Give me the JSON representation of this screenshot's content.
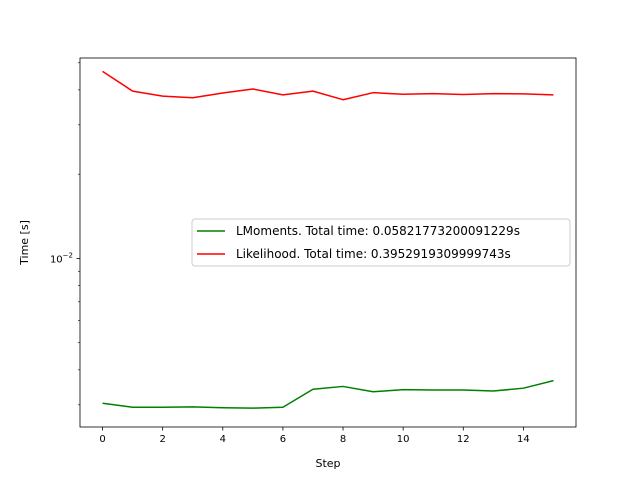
{
  "chart_data": {
    "type": "line",
    "xlabel": "Step",
    "ylabel": "Time [s]",
    "yscale": "log",
    "xlim": [
      -0.75,
      15.75
    ],
    "ylim": [
      0.0025,
      0.052
    ],
    "xticks": [
      0,
      2,
      4,
      6,
      8,
      10,
      12,
      14
    ],
    "yticks": [
      {
        "value": 0.01,
        "label": "10",
        "exp": "−2"
      }
    ],
    "grid": false,
    "legend_position": "center-right",
    "x": [
      0,
      1,
      2,
      3,
      4,
      5,
      6,
      7,
      8,
      9,
      10,
      11,
      12,
      13,
      14,
      15
    ],
    "series": [
      {
        "name": "LMoments. Total time: 0.05821773200091229s",
        "color": "#008000",
        "values": [
          0.00304,
          0.00294,
          0.00294,
          0.00295,
          0.00293,
          0.00292,
          0.00294,
          0.00341,
          0.00349,
          0.00334,
          0.0034,
          0.00339,
          0.00339,
          0.00336,
          0.00344,
          0.00366
        ]
      },
      {
        "name": "Likelihood. Total time: 0.3952919309999743s",
        "color": "#ff0000",
        "values": [
          0.0466,
          0.0396,
          0.038,
          0.0375,
          0.039,
          0.0403,
          0.0384,
          0.0396,
          0.0369,
          0.0391,
          0.0386,
          0.0388,
          0.0385,
          0.0388,
          0.0387,
          0.0384
        ]
      }
    ]
  }
}
